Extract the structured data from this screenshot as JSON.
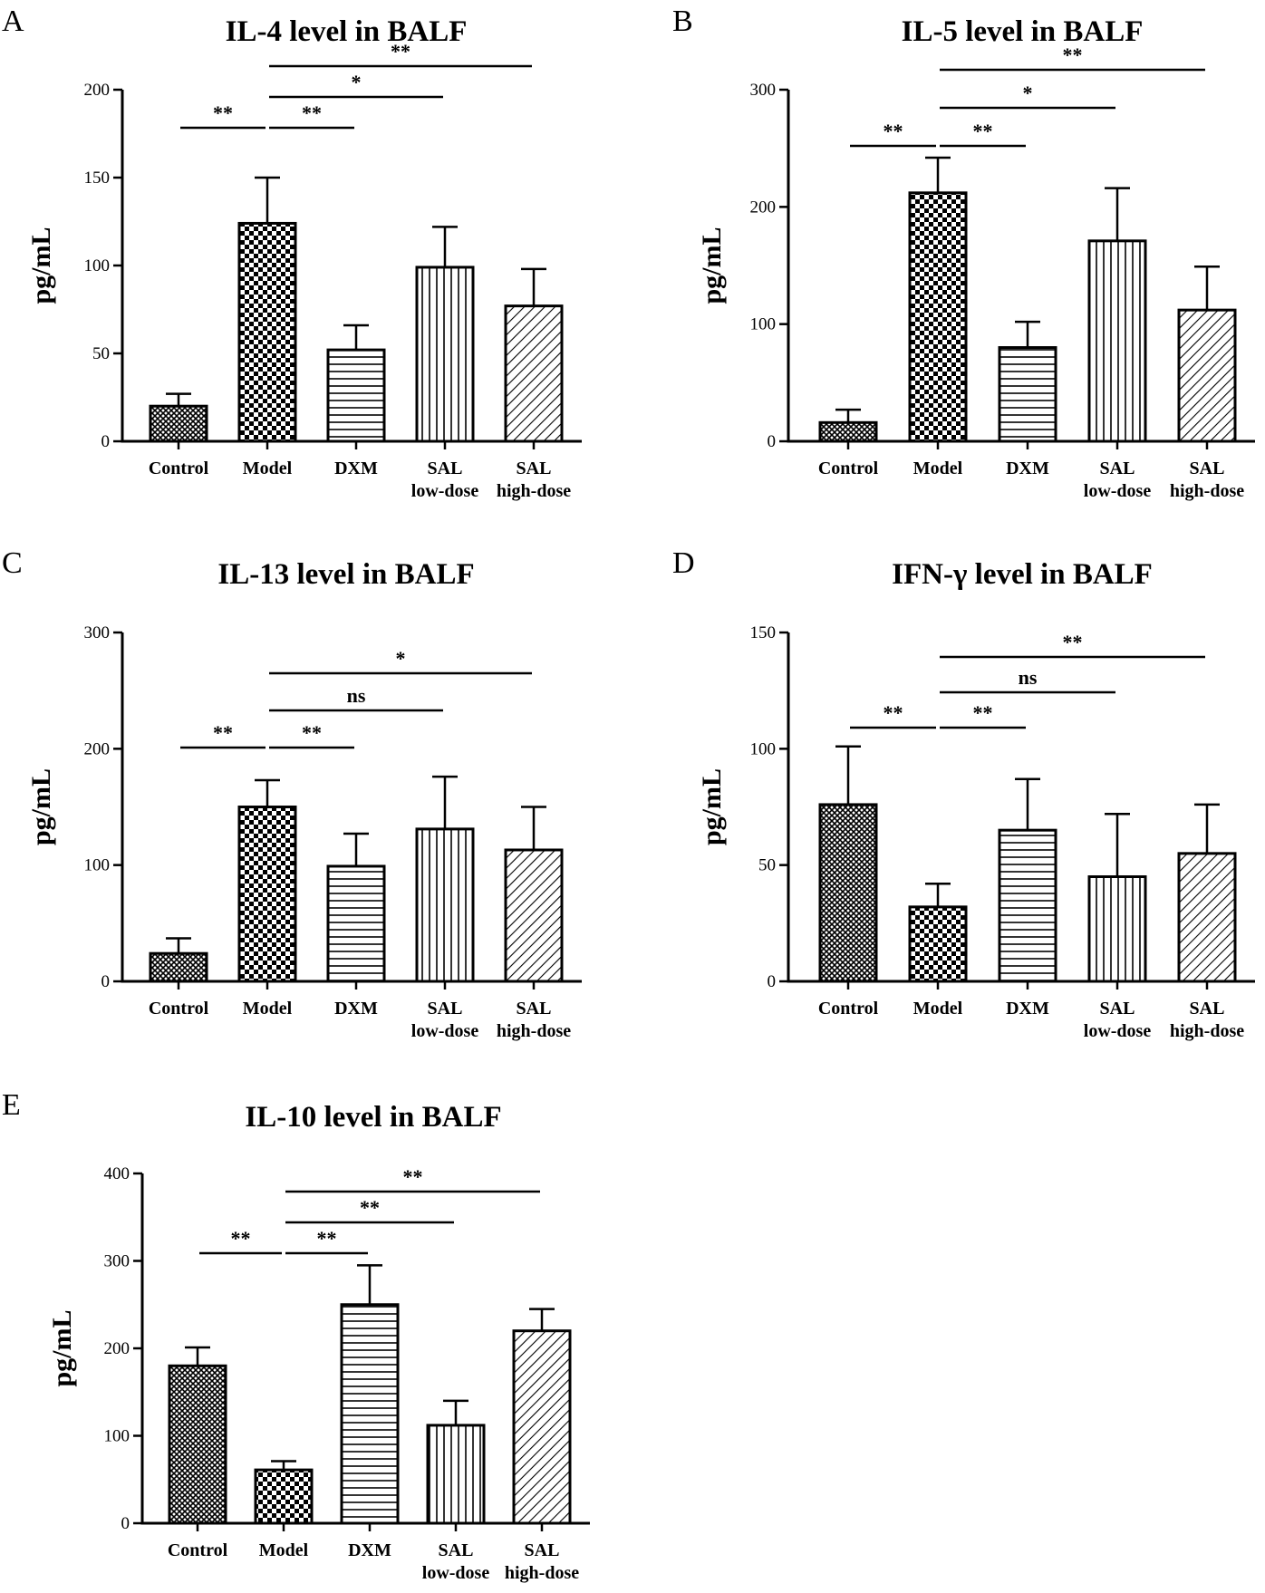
{
  "chart_data": [
    {
      "panel": "A",
      "type": "bar",
      "title": "IL-4 level in BALF",
      "ylabel": "pg/mL",
      "xlabel": "",
      "ylim": [
        0,
        200
      ],
      "yticks": [
        "0",
        "50",
        "100",
        "150",
        "200"
      ],
      "categories": [
        [
          "Control"
        ],
        [
          "Model"
        ],
        [
          "DXM"
        ],
        [
          "SAL",
          "low-dose"
        ],
        [
          "SAL",
          "high-dose"
        ]
      ],
      "values": [
        20,
        124,
        52,
        99,
        77
      ],
      "errors": [
        7,
        26,
        14,
        23,
        21
      ],
      "patterns": [
        "crosshatch",
        "checker",
        "horizontal",
        "vertical",
        "diagonal"
      ],
      "comparisons": [
        {
          "from": 0,
          "to": 1,
          "label": "**"
        },
        {
          "from": 1,
          "to": 2,
          "label": "**"
        },
        {
          "from": 1,
          "to": 3,
          "label": "*"
        },
        {
          "from": 1,
          "to": 4,
          "label": "**"
        }
      ]
    },
    {
      "panel": "B",
      "type": "bar",
      "title": "IL-5 level in BALF",
      "ylabel": "pg/mL",
      "xlabel": "",
      "ylim": [
        0,
        300
      ],
      "yticks": [
        "0",
        "100",
        "200",
        "300"
      ],
      "categories": [
        [
          "Control"
        ],
        [
          "Model"
        ],
        [
          "DXM"
        ],
        [
          "SAL",
          "low-dose"
        ],
        [
          "SAL",
          "high-dose"
        ]
      ],
      "values": [
        16,
        212,
        80,
        171,
        112
      ],
      "errors": [
        11,
        30,
        22,
        45,
        37
      ],
      "patterns": [
        "crosshatch",
        "checker",
        "horizontal",
        "vertical",
        "diagonal"
      ],
      "comparisons": [
        {
          "from": 0,
          "to": 1,
          "label": "**"
        },
        {
          "from": 1,
          "to": 2,
          "label": "**"
        },
        {
          "from": 1,
          "to": 3,
          "label": "*"
        },
        {
          "from": 1,
          "to": 4,
          "label": "**"
        }
      ]
    },
    {
      "panel": "C",
      "type": "bar",
      "title": "IL-13 level in BALF",
      "ylabel": "pg/mL",
      "xlabel": "",
      "ylim": [
        0,
        300
      ],
      "yticks": [
        "0",
        "100",
        "200",
        "300"
      ],
      "categories": [
        [
          "Control"
        ],
        [
          "Model"
        ],
        [
          "DXM"
        ],
        [
          "SAL",
          "low-dose"
        ],
        [
          "SAL",
          "high-dose"
        ]
      ],
      "values": [
        24,
        150,
        99,
        131,
        113
      ],
      "errors": [
        13,
        23,
        28,
        45,
        37
      ],
      "patterns": [
        "crosshatch",
        "checker",
        "horizontal",
        "vertical",
        "diagonal"
      ],
      "comparisons": [
        {
          "from": 0,
          "to": 1,
          "label": "**"
        },
        {
          "from": 1,
          "to": 2,
          "label": "**"
        },
        {
          "from": 1,
          "to": 3,
          "label": "ns"
        },
        {
          "from": 1,
          "to": 4,
          "label": "*"
        }
      ]
    },
    {
      "panel": "D",
      "type": "bar",
      "title": "IFN-γ level in BALF",
      "ylabel": "pg/mL",
      "xlabel": "",
      "ylim": [
        0,
        150
      ],
      "yticks": [
        "0",
        "50",
        "100",
        "150"
      ],
      "categories": [
        [
          "Control"
        ],
        [
          "Model"
        ],
        [
          "DXM"
        ],
        [
          "SAL",
          "low-dose"
        ],
        [
          "SAL",
          "high-dose"
        ]
      ],
      "values": [
        76,
        32,
        65,
        45,
        55
      ],
      "errors": [
        25,
        10,
        22,
        27,
        21
      ],
      "patterns": [
        "crosshatch",
        "checker",
        "horizontal",
        "vertical",
        "diagonal"
      ],
      "comparisons": [
        {
          "from": 0,
          "to": 1,
          "label": "**"
        },
        {
          "from": 1,
          "to": 2,
          "label": "**"
        },
        {
          "from": 1,
          "to": 3,
          "label": "ns"
        },
        {
          "from": 1,
          "to": 4,
          "label": "**"
        }
      ]
    },
    {
      "panel": "E",
      "type": "bar",
      "title": "IL-10 level in BALF",
      "ylabel": "pg/mL",
      "xlabel": "",
      "ylim": [
        0,
        400
      ],
      "yticks": [
        "0",
        "100",
        "200",
        "300",
        "400"
      ],
      "categories": [
        [
          "Control"
        ],
        [
          "Model"
        ],
        [
          "DXM"
        ],
        [
          "SAL",
          "low-dose"
        ],
        [
          "SAL",
          "high-dose"
        ]
      ],
      "values": [
        180,
        61,
        250,
        112,
        220
      ],
      "errors": [
        21,
        10,
        45,
        28,
        25
      ],
      "patterns": [
        "crosshatch",
        "checker",
        "horizontal",
        "vertical",
        "diagonal"
      ],
      "comparisons": [
        {
          "from": 0,
          "to": 1,
          "label": "**"
        },
        {
          "from": 1,
          "to": 2,
          "label": "**"
        },
        {
          "from": 1,
          "to": 3,
          "label": "**"
        },
        {
          "from": 1,
          "to": 4,
          "label": "**"
        }
      ]
    }
  ]
}
